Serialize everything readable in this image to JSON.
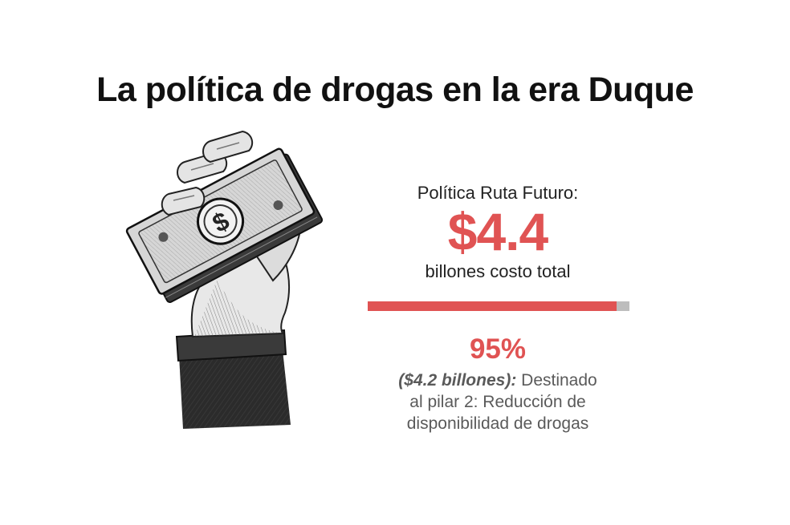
{
  "title": "La política de drogas en la era Duque",
  "illustration": {
    "icon": "hand-holding-money-icon",
    "symbol": "$"
  },
  "stat": {
    "label": "Política Ruta Futuro:",
    "amount": "$4.4",
    "amount_caption": "billones costo total",
    "bar_fraction": 0.95,
    "accent_color": "#e05353",
    "rest_color": "#bdbdbd",
    "percent": "95%",
    "detail_emphasis": "($4.2 billones):",
    "detail_line1_rest": " Destinado",
    "detail_line2": "al pilar 2: Reducción de",
    "detail_line3": "disponibilidad de drogas"
  }
}
